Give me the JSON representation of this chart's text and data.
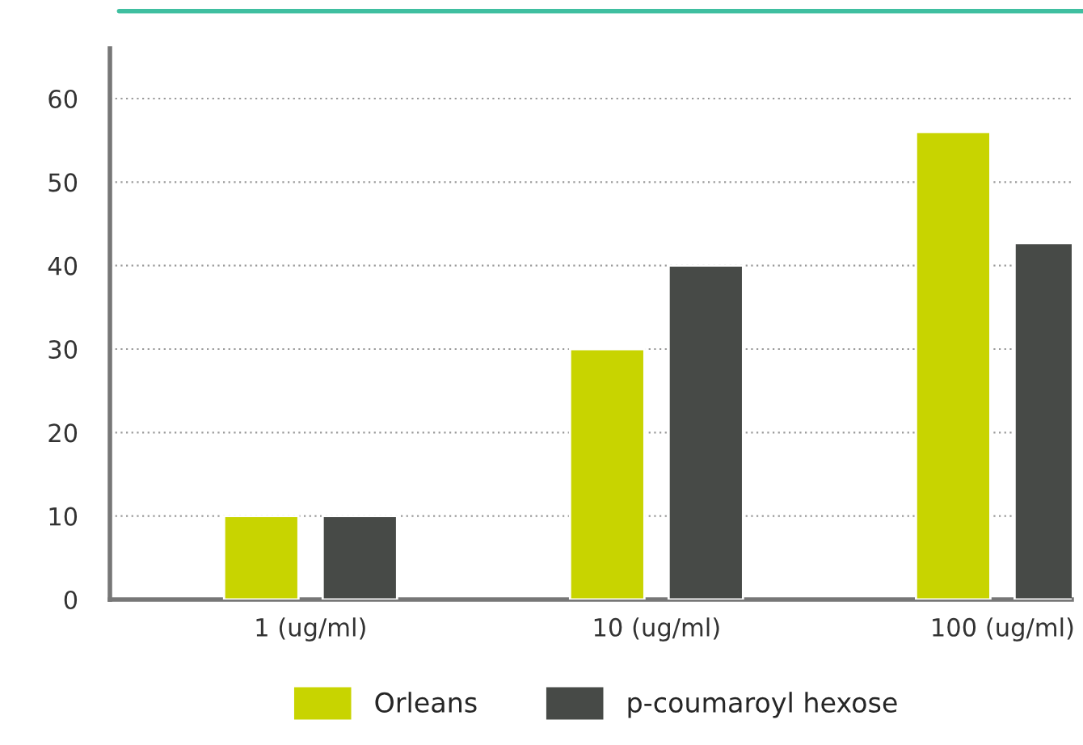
{
  "chart_data": {
    "type": "bar",
    "categories": [
      "1 (ug/ml)",
      "10 (ug/ml)",
      "100 (ug/ml)"
    ],
    "series": [
      {
        "name": "Orleans",
        "color": "#c8d400",
        "values": [
          10,
          30,
          56
        ]
      },
      {
        "name": "p-coumaroyl hexose",
        "color": "#474a47",
        "values": [
          10,
          40,
          42.7
        ]
      }
    ],
    "ylim": [
      0,
      66
    ],
    "yticks": [
      0,
      10,
      20,
      30,
      40,
      50,
      60
    ],
    "grid": "y",
    "legend": "bottom"
  }
}
